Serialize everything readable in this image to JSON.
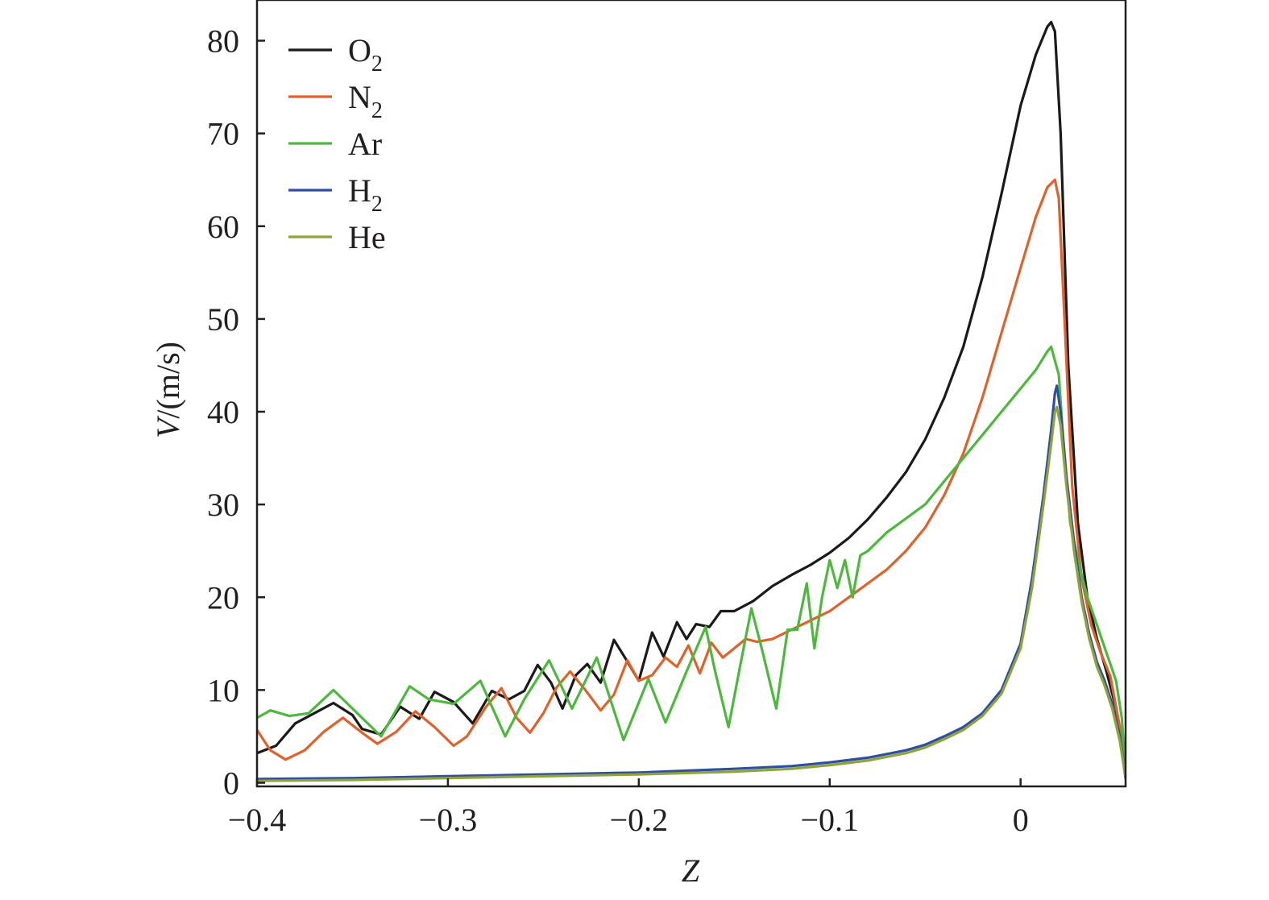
{
  "chart_data": {
    "type": "line",
    "xlabel": "Z",
    "ylabel_italic": "V",
    "ylabel_rest": "/(m/s)",
    "xlim": [
      -0.4,
      0.055
    ],
    "ylim": [
      0,
      84
    ],
    "xticks": [
      -0.4,
      -0.3,
      -0.2,
      -0.1,
      0
    ],
    "xtick_labels": [
      "−0.4",
      "−0.3",
      "−0.2",
      "−0.1",
      "0"
    ],
    "yticks": [
      0,
      10,
      20,
      30,
      40,
      50,
      60,
      70,
      80
    ],
    "ytick_labels": [
      "0",
      "10",
      "20",
      "30",
      "40",
      "50",
      "60",
      "70",
      "80"
    ],
    "grid": false,
    "legend_position": "top-left",
    "series": [
      {
        "name": "O",
        "sub": "2",
        "color": "#1a1a1a",
        "x": [
          -0.4,
          -0.39,
          -0.38,
          -0.37,
          -0.36,
          -0.35,
          -0.345,
          -0.335,
          -0.325,
          -0.315,
          -0.307,
          -0.297,
          -0.287,
          -0.277,
          -0.268,
          -0.26,
          -0.253,
          -0.246,
          -0.24,
          -0.233,
          -0.227,
          -0.22,
          -0.213,
          -0.207,
          -0.2,
          -0.193,
          -0.187,
          -0.18,
          -0.175,
          -0.17,
          -0.163,
          -0.157,
          -0.15,
          -0.14,
          -0.13,
          -0.12,
          -0.11,
          -0.1,
          -0.09,
          -0.08,
          -0.07,
          -0.06,
          -0.05,
          -0.04,
          -0.03,
          -0.02,
          -0.01,
          0,
          0.008,
          0.014,
          0.016,
          0.018,
          0.021,
          0.025,
          0.03,
          0.035,
          0.04,
          0.045,
          0.05,
          0.053,
          0.055
        ],
        "y": [
          3.2,
          4.0,
          6.4,
          7.5,
          8.6,
          7.3,
          5.8,
          5.2,
          8.2,
          6.9,
          9.8,
          8.7,
          6.4,
          9.9,
          9.0,
          9.9,
          12.7,
          10.8,
          8.0,
          11.6,
          12.8,
          10.8,
          15.4,
          13.4,
          11.0,
          16.2,
          13.6,
          17.3,
          15.5,
          17.1,
          16.8,
          18.5,
          18.5,
          19.6,
          21.2,
          22.4,
          23.5,
          24.8,
          26.4,
          28.4,
          30.8,
          33.5,
          37.0,
          41.5,
          47.0,
          54.5,
          63.5,
          73.0,
          78.5,
          81.5,
          82.0,
          81.0,
          70.0,
          45.0,
          28.0,
          20.0,
          15.5,
          12.0,
          8.0,
          4.0,
          0.5
        ]
      },
      {
        "name": "N",
        "sub": "2",
        "color": "#e0622a",
        "x": [
          -0.4,
          -0.393,
          -0.385,
          -0.375,
          -0.365,
          -0.355,
          -0.345,
          -0.337,
          -0.327,
          -0.317,
          -0.307,
          -0.297,
          -0.29,
          -0.28,
          -0.272,
          -0.264,
          -0.257,
          -0.25,
          -0.243,
          -0.236,
          -0.228,
          -0.22,
          -0.213,
          -0.206,
          -0.2,
          -0.193,
          -0.186,
          -0.18,
          -0.174,
          -0.168,
          -0.162,
          -0.156,
          -0.15,
          -0.144,
          -0.138,
          -0.13,
          -0.12,
          -0.11,
          -0.1,
          -0.09,
          -0.08,
          -0.07,
          -0.06,
          -0.05,
          -0.04,
          -0.03,
          -0.02,
          -0.01,
          0,
          0.008,
          0.014,
          0.018,
          0.02,
          0.023,
          0.027,
          0.032,
          0.037,
          0.042,
          0.047,
          0.052,
          0.055
        ],
        "y": [
          5.7,
          3.5,
          2.5,
          3.5,
          5.5,
          7.0,
          5.4,
          4.2,
          5.5,
          7.7,
          6.0,
          4.0,
          5.0,
          8.2,
          10.2,
          7.0,
          5.4,
          7.5,
          10.3,
          12.0,
          10.0,
          7.8,
          9.5,
          13.2,
          11.0,
          11.6,
          13.5,
          12.5,
          14.8,
          11.8,
          15.1,
          13.5,
          14.5,
          15.5,
          15.2,
          15.5,
          16.5,
          17.5,
          18.5,
          20.0,
          21.5,
          23.0,
          25.0,
          27.5,
          31.0,
          35.5,
          41.5,
          48.5,
          55.5,
          61.0,
          64.2,
          65.0,
          63.0,
          50.0,
          32.0,
          22.0,
          17.0,
          14.0,
          11.5,
          6.0,
          0.5
        ]
      },
      {
        "name": "Ar",
        "sub": "",
        "color": "#4db83d",
        "x": [
          -0.4,
          -0.393,
          -0.383,
          -0.373,
          -0.36,
          -0.35,
          -0.335,
          -0.32,
          -0.31,
          -0.297,
          -0.283,
          -0.27,
          -0.26,
          -0.247,
          -0.235,
          -0.222,
          -0.208,
          -0.195,
          -0.186,
          -0.175,
          -0.165,
          -0.16,
          -0.153,
          -0.147,
          -0.141,
          -0.135,
          -0.128,
          -0.122,
          -0.117,
          -0.112,
          -0.108,
          -0.104,
          -0.1,
          -0.096,
          -0.092,
          -0.088,
          -0.084,
          -0.08,
          -0.075,
          -0.07,
          -0.06,
          -0.05,
          -0.04,
          -0.03,
          -0.02,
          -0.01,
          0,
          0.008,
          0.014,
          0.016,
          0.018,
          0.02,
          0.022,
          0.026,
          0.03,
          0.035,
          0.04,
          0.045,
          0.05,
          0.053,
          0.055
        ],
        "y": [
          7.0,
          7.8,
          7.2,
          7.5,
          10.0,
          8.0,
          5.0,
          10.4,
          9.0,
          8.5,
          11.0,
          5.0,
          9.0,
          13.2,
          8.0,
          13.5,
          4.6,
          11.2,
          6.5,
          12.0,
          16.8,
          12.0,
          6.0,
          12.5,
          18.8,
          14.0,
          8.0,
          16.5,
          16.5,
          21.5,
          14.5,
          20.0,
          24.0,
          21.0,
          24.0,
          20.0,
          24.5,
          25.0,
          26.0,
          27.0,
          28.5,
          30.0,
          32.5,
          35.0,
          37.5,
          40.0,
          42.5,
          44.5,
          46.5,
          47.0,
          45.5,
          44.0,
          38.0,
          28.0,
          24.0,
          20.0,
          17.0,
          14.0,
          11.0,
          7.0,
          1.0
        ]
      },
      {
        "name": "H",
        "sub": "2",
        "color": "#2e4fa0",
        "x": [
          -0.4,
          -0.35,
          -0.3,
          -0.25,
          -0.2,
          -0.15,
          -0.12,
          -0.1,
          -0.08,
          -0.06,
          -0.05,
          -0.04,
          -0.03,
          -0.02,
          -0.01,
          0,
          0.006,
          0.012,
          0.016,
          0.018,
          0.019,
          0.021,
          0.024,
          0.028,
          0.032,
          0.036,
          0.04,
          0.044,
          0.048,
          0.052,
          0.055
        ],
        "y": [
          0.4,
          0.5,
          0.7,
          0.9,
          1.1,
          1.5,
          1.8,
          2.2,
          2.7,
          3.5,
          4.1,
          5.0,
          6.0,
          7.5,
          10.0,
          15.0,
          22.0,
          31.0,
          38.0,
          42.0,
          42.8,
          40.0,
          33.0,
          26.0,
          20.0,
          16.0,
          13.0,
          11.0,
          8.5,
          5.0,
          0.5
        ]
      },
      {
        "name": "He",
        "sub": "",
        "color": "#8fa33a",
        "x": [
          -0.4,
          -0.35,
          -0.3,
          -0.25,
          -0.2,
          -0.15,
          -0.12,
          -0.1,
          -0.08,
          -0.06,
          -0.05,
          -0.04,
          -0.03,
          -0.02,
          -0.01,
          0,
          0.006,
          0.012,
          0.016,
          0.018,
          0.019,
          0.021,
          0.024,
          0.028,
          0.032,
          0.036,
          0.04,
          0.044,
          0.048,
          0.052,
          0.055
        ],
        "y": [
          0.2,
          0.3,
          0.5,
          0.7,
          0.9,
          1.2,
          1.5,
          1.9,
          2.4,
          3.2,
          3.8,
          4.7,
          5.7,
          7.2,
          9.6,
          14.5,
          21.0,
          30.0,
          36.5,
          40.0,
          40.5,
          38.5,
          32.0,
          25.0,
          19.5,
          15.5,
          12.5,
          10.5,
          8.0,
          4.5,
          0.5
        ]
      }
    ]
  }
}
